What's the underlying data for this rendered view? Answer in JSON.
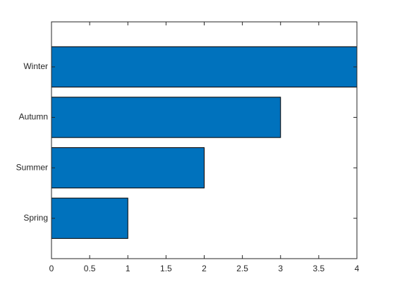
{
  "chart_data": {
    "type": "barh",
    "categories": [
      "Spring",
      "Summer",
      "Autumn",
      "Winter"
    ],
    "values": [
      1,
      2,
      3,
      4
    ],
    "color": "#0072bd",
    "xlim": [
      0,
      4
    ],
    "xticks": [
      0,
      0.5,
      1,
      1.5,
      2,
      2.5,
      3,
      3.5,
      4
    ]
  }
}
